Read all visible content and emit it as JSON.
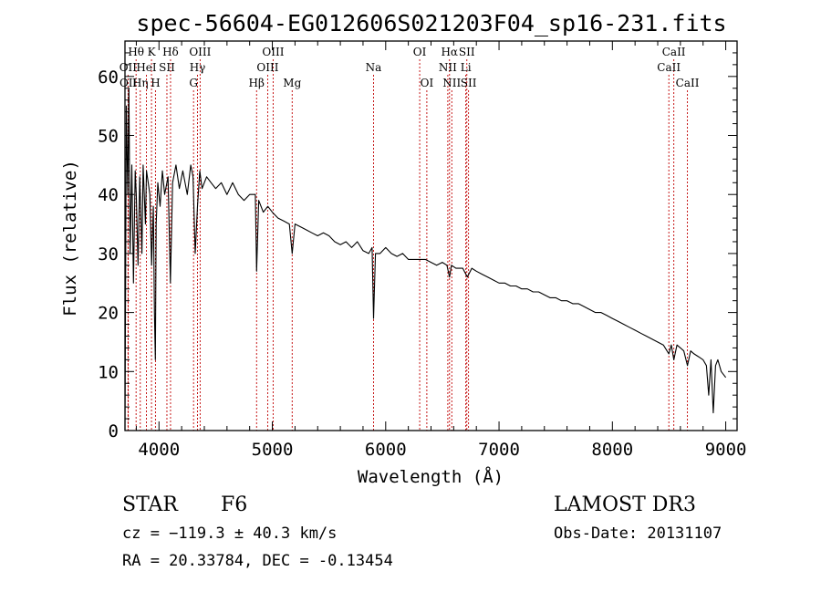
{
  "chart_data": {
    "type": "line",
    "title": "spec-56604-EG012606S021203F04_sp16-231.fits",
    "xlabel": "Wavelength (Å)",
    "ylabel": "Flux (relative)",
    "xlim": [
      3700,
      9100
    ],
    "ylim": [
      0,
      66
    ],
    "x_ticks": [
      4000,
      5000,
      6000,
      7000,
      8000,
      9000
    ],
    "y_ticks": [
      0,
      10,
      20,
      30,
      40,
      50,
      60
    ],
    "x_tick_labels": [
      "4000",
      "5000",
      "6000",
      "7000",
      "8000",
      "9000"
    ],
    "y_tick_labels": [
      "0",
      "10",
      "20",
      "30",
      "40",
      "50",
      "60"
    ],
    "series": [
      {
        "name": "spectrum",
        "x": [
          3700,
          3712,
          3725,
          3735,
          3745,
          3760,
          3775,
          3790,
          3800,
          3815,
          3830,
          3850,
          3860,
          3880,
          3890,
          3905,
          3920,
          3935,
          3950,
          3960,
          3968,
          3975,
          3990,
          4010,
          4030,
          4050,
          4080,
          4101,
          4120,
          4150,
          4180,
          4210,
          4250,
          4280,
          4300,
          4320,
          4340,
          4360,
          4380,
          4420,
          4460,
          4500,
          4550,
          4600,
          4650,
          4700,
          4750,
          4800,
          4850,
          4861,
          4880,
          4920,
          4960,
          5000,
          5050,
          5100,
          5150,
          5175,
          5200,
          5250,
          5300,
          5350,
          5400,
          5450,
          5500,
          5550,
          5600,
          5650,
          5700,
          5750,
          5800,
          5850,
          5880,
          5893,
          5910,
          5950,
          6000,
          6050,
          6100,
          6150,
          6200,
          6250,
          6300,
          6350,
          6400,
          6450,
          6500,
          6540,
          6563,
          6580,
          6620,
          6680,
          6720,
          6760,
          6800,
          6850,
          6900,
          6950,
          7000,
          7050,
          7100,
          7150,
          7200,
          7250,
          7300,
          7350,
          7400,
          7450,
          7500,
          7550,
          7600,
          7650,
          7700,
          7750,
          7800,
          7850,
          7900,
          7950,
          8000,
          8050,
          8100,
          8150,
          8200,
          8250,
          8300,
          8350,
          8400,
          8450,
          8498,
          8520,
          8542,
          8570,
          8600,
          8630,
          8662,
          8690,
          8720,
          8760,
          8800,
          8830,
          8850,
          8870,
          8890,
          8910,
          8930,
          8960,
          9000
        ],
        "values": [
          0,
          55,
          40,
          58,
          30,
          45,
          25,
          44,
          40,
          28,
          43,
          30,
          45,
          35,
          44,
          42,
          40,
          28,
          38,
          20,
          12,
          35,
          42,
          38,
          44,
          40,
          43,
          25,
          42,
          45,
          41,
          44,
          40,
          45,
          43,
          30,
          38,
          44,
          41,
          43,
          42,
          41,
          42,
          40,
          42,
          40,
          39,
          40,
          40,
          27,
          39,
          37,
          38,
          37,
          36,
          35.5,
          35,
          30,
          35,
          34.5,
          34,
          33.5,
          33,
          33.5,
          33,
          32,
          31.5,
          32,
          31,
          32,
          30.5,
          30,
          31,
          19,
          30,
          30,
          31,
          30,
          29.5,
          30,
          29,
          29,
          29,
          29,
          28.5,
          28,
          28.5,
          28,
          26,
          28,
          27.5,
          27.5,
          26,
          27.5,
          27,
          26.5,
          26,
          25.5,
          25,
          25,
          24.5,
          24.5,
          24,
          24,
          23.5,
          23.5,
          23,
          22.5,
          22.5,
          22,
          22,
          21.5,
          21.5,
          21,
          20.5,
          20,
          20,
          19.5,
          19,
          18.5,
          18,
          17.5,
          17,
          16.5,
          16,
          15.5,
          15,
          14.5,
          13,
          14.5,
          12,
          14.5,
          14,
          13.5,
          11,
          13.5,
          13,
          12.5,
          12,
          11,
          6,
          12,
          3,
          11,
          12,
          10,
          9
        ]
      }
    ],
    "line_markers": [
      {
        "label": "Hθ",
        "x": 3798,
        "row": 0
      },
      {
        "label": "OII",
        "x": 3727,
        "row": 1
      },
      {
        "label": "OII",
        "x": 3729,
        "row": 2
      },
      {
        "label": "K",
        "x": 3934,
        "row": 0
      },
      {
        "label": "HeI",
        "x": 3889,
        "row": 1
      },
      {
        "label": "Hη",
        "x": 3835,
        "row": 2
      },
      {
        "label": "H",
        "x": 3969,
        "row": 2
      },
      {
        "label": "SII",
        "x": 4070,
        "row": 1
      },
      {
        "label": "Hδ",
        "x": 4102,
        "row": 0
      },
      {
        "label": "OIII",
        "x": 4363,
        "row": 0
      },
      {
        "label": "Hγ",
        "x": 4340,
        "row": 1
      },
      {
        "label": "G",
        "x": 4305,
        "row": 2
      },
      {
        "label": "Hβ",
        "x": 4861,
        "row": 2
      },
      {
        "label": "OIII",
        "x": 5007,
        "row": 0
      },
      {
        "label": "OIII",
        "x": 4959,
        "row": 1
      },
      {
        "label": "Mg",
        "x": 5175,
        "row": 2
      },
      {
        "label": "Na",
        "x": 5893,
        "row": 1
      },
      {
        "label": "OI",
        "x": 6300,
        "row": 0
      },
      {
        "label": "OI",
        "x": 6363,
        "row": 2
      },
      {
        "label": "Hα",
        "x": 6563,
        "row": 0
      },
      {
        "label": "SII",
        "x": 6716,
        "row": 0
      },
      {
        "label": "NII",
        "x": 6548,
        "row": 1
      },
      {
        "label": "Li",
        "x": 6707,
        "row": 1
      },
      {
        "label": "NII",
        "x": 6583,
        "row": 2
      },
      {
        "label": "SII",
        "x": 6731,
        "row": 2
      },
      {
        "label": "CaII",
        "x": 8542,
        "row": 0
      },
      {
        "label": "CaII",
        "x": 8498,
        "row": 1
      },
      {
        "label": "CaII",
        "x": 8662,
        "row": 2
      }
    ],
    "marker_color": "#c00000"
  },
  "info": {
    "class": "STAR",
    "subclass": "F6",
    "survey": "LAMOST DR3",
    "cz": "cz = −119.3 ± 40.3 km/s",
    "obs_date": "Obs-Date: 20131107",
    "coords": "RA =  20.33784, DEC =  -0.13454"
  }
}
